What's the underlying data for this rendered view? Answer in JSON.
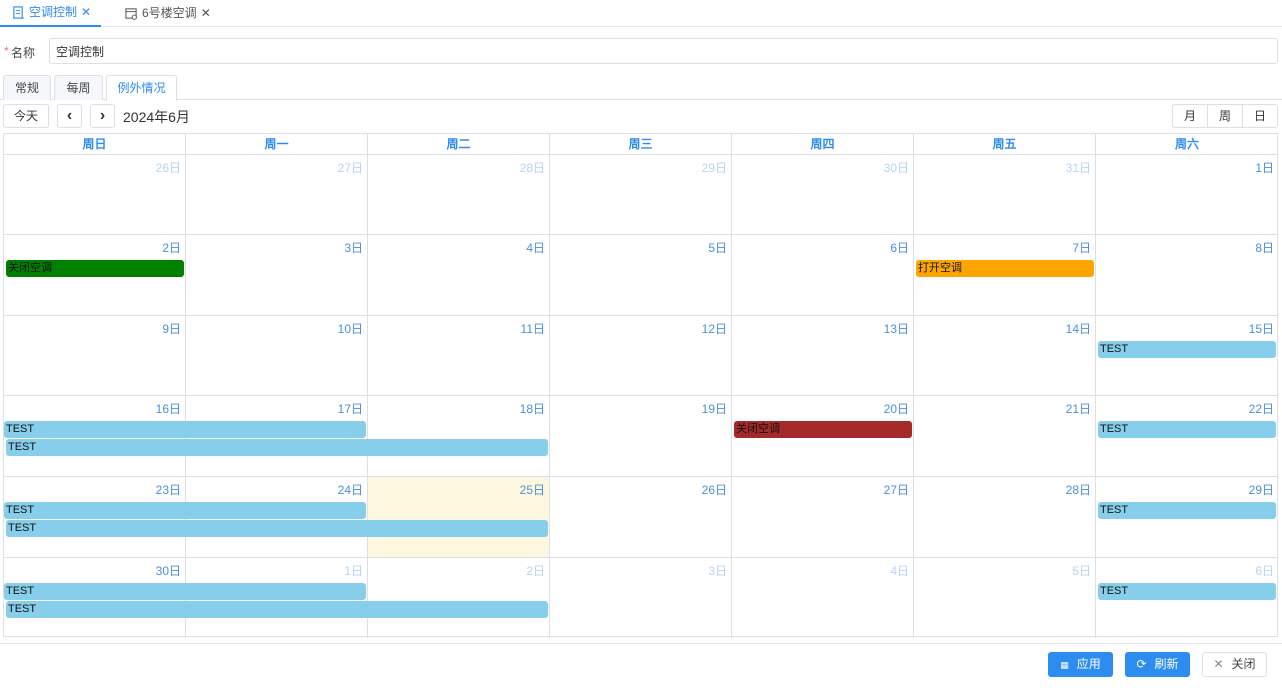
{
  "page_tabs": [
    {
      "label": "空调控制",
      "icon": "document-icon",
      "active": true
    },
    {
      "label": "6号楼空调",
      "icon": "calendar-settings-icon",
      "active": false
    }
  ],
  "form": {
    "name_label": "名称",
    "name_value": "空调控制",
    "required_mark": "*"
  },
  "sub_tabs": [
    {
      "label": "常规"
    },
    {
      "label": "每周"
    },
    {
      "label": "例外情况",
      "active": true
    }
  ],
  "toolbar": {
    "today": "今天",
    "prev": "‹",
    "next": "›",
    "title": "2024年6月",
    "views": [
      "月",
      "周",
      "日"
    ]
  },
  "calendar": {
    "weekdays": [
      "周日",
      "周一",
      "周二",
      "周三",
      "周四",
      "周五",
      "周六"
    ],
    "weeks": [
      [
        {
          "d": "26日",
          "o": true
        },
        {
          "d": "27日",
          "o": true
        },
        {
          "d": "28日",
          "o": true
        },
        {
          "d": "29日",
          "o": true
        },
        {
          "d": "30日",
          "o": true
        },
        {
          "d": "31日",
          "o": true
        },
        {
          "d": "1日"
        }
      ],
      [
        {
          "d": "2日"
        },
        {
          "d": "3日"
        },
        {
          "d": "4日"
        },
        {
          "d": "5日"
        },
        {
          "d": "6日"
        },
        {
          "d": "7日"
        },
        {
          "d": "8日"
        }
      ],
      [
        {
          "d": "9日"
        },
        {
          "d": "10日"
        },
        {
          "d": "11日"
        },
        {
          "d": "12日"
        },
        {
          "d": "13日"
        },
        {
          "d": "14日"
        },
        {
          "d": "15日"
        }
      ],
      [
        {
          "d": "16日"
        },
        {
          "d": "17日"
        },
        {
          "d": "18日"
        },
        {
          "d": "19日"
        },
        {
          "d": "20日"
        },
        {
          "d": "21日"
        },
        {
          "d": "22日"
        }
      ],
      [
        {
          "d": "23日"
        },
        {
          "d": "24日"
        },
        {
          "d": "25日",
          "today": true
        },
        {
          "d": "26日"
        },
        {
          "d": "27日"
        },
        {
          "d": "28日"
        },
        {
          "d": "29日"
        }
      ],
      [
        {
          "d": "30日"
        },
        {
          "d": "1日",
          "o": true
        },
        {
          "d": "2日",
          "o": true
        },
        {
          "d": "3日",
          "o": true
        },
        {
          "d": "4日",
          "o": true
        },
        {
          "d": "5日",
          "o": true
        },
        {
          "d": "6日",
          "o": true
        }
      ]
    ],
    "events": [
      {
        "week": 1,
        "start": 0,
        "span": 1,
        "lane": 0,
        "label": "关闭空调",
        "color": "#008000"
      },
      {
        "week": 1,
        "start": 5,
        "span": 1,
        "lane": 0,
        "label": "打开空调",
        "color": "#ffa500"
      },
      {
        "week": 2,
        "start": 6,
        "span": 1,
        "lane": 0,
        "label": "TEST",
        "color": "#87ceeb"
      },
      {
        "week": 3,
        "start": 0,
        "span": 2,
        "lane": 0,
        "label": "TEST",
        "color": "#87ceeb"
      },
      {
        "week": 3,
        "start": 0,
        "span": 3,
        "lane": 1,
        "label": "TEST",
        "color": "#87ceeb"
      },
      {
        "week": 3,
        "start": 4,
        "span": 1,
        "lane": 0,
        "label": "关闭空调",
        "color": "#a52a2a"
      },
      {
        "week": 3,
        "start": 6,
        "span": 1,
        "lane": 0,
        "label": "TEST",
        "color": "#87ceeb"
      },
      {
        "week": 4,
        "start": 0,
        "span": 2,
        "lane": 0,
        "label": "TEST",
        "color": "#87ceeb"
      },
      {
        "week": 4,
        "start": 0,
        "span": 3,
        "lane": 1,
        "label": "TEST",
        "color": "#87ceeb"
      },
      {
        "week": 4,
        "start": 6,
        "span": 1,
        "lane": 0,
        "label": "TEST",
        "color": "#87ceeb"
      },
      {
        "week": 5,
        "start": 0,
        "span": 2,
        "lane": 0,
        "label": "TEST",
        "color": "#87ceeb"
      },
      {
        "week": 5,
        "start": 0,
        "span": 3,
        "lane": 1,
        "label": "TEST",
        "color": "#87ceeb"
      },
      {
        "week": 5,
        "start": 6,
        "span": 1,
        "lane": 0,
        "label": "TEST",
        "color": "#87ceeb"
      }
    ]
  },
  "footer": {
    "apply": "应用",
    "refresh": "刷新",
    "close": "关闭"
  },
  "colors": {
    "accent": "#2d8cf0",
    "today_bg": "#fdf7e0"
  }
}
